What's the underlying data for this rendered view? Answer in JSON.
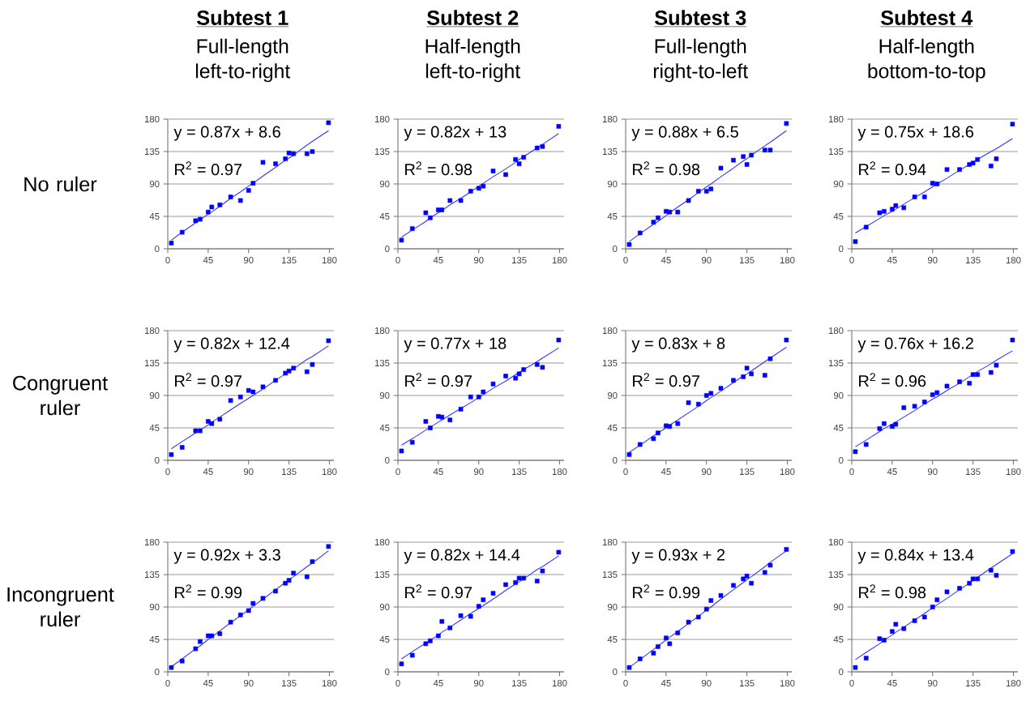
{
  "chart_data": [
    {
      "type": "scatter",
      "title": "Subtest 1",
      "subtitle": "Full-length left-to-right",
      "ylabel": "No ruler",
      "x": [
        4,
        16,
        31,
        36,
        45,
        49,
        58,
        70,
        81,
        90,
        95,
        106,
        120,
        131,
        135,
        140,
        155,
        161,
        179
      ],
      "series": [
        {
          "type": "scatter",
          "color": "#0000ff",
          "values": [
            8,
            23,
            39,
            41,
            51,
            58,
            61,
            72,
            67,
            81,
            91,
            120,
            118,
            125,
            133,
            132,
            132,
            135,
            175
          ]
        },
        {
          "type": "line",
          "marker": "none",
          "color": "#3333ff",
          "values": [
            12,
            23,
            36,
            40,
            48,
            51,
            59,
            70,
            79,
            87,
            91,
            101,
            113,
            123,
            126,
            130,
            144,
            149,
            164
          ]
        }
      ],
      "annotations": [
        "y = 0.87x + 8.6",
        "R$^{2}$ = 0.97"
      ],
      "xlim": [
        0,
        185
      ],
      "ylim": [
        0,
        180
      ],
      "xticks": [
        0,
        45,
        90,
        135,
        180
      ],
      "yticks": [
        0,
        45,
        90,
        135,
        180
      ],
      "grid": "y",
      "marker": "square"
    },
    {
      "type": "scatter",
      "title": "Subtest 2",
      "subtitle": "Half-length left-to-right",
      "x": [
        4,
        16,
        31,
        36,
        45,
        49,
        58,
        70,
        81,
        90,
        95,
        106,
        120,
        131,
        135,
        140,
        155,
        161,
        179
      ],
      "series": [
        {
          "type": "scatter",
          "color": "#0000ff",
          "values": [
            12,
            28,
            50,
            43,
            54,
            54,
            67,
            67,
            80,
            84,
            87,
            108,
            103,
            124,
            118,
            127,
            140,
            142,
            170
          ]
        },
        {
          "type": "line",
          "marker": "none",
          "color": "#3333ff",
          "values": [
            16,
            26,
            38,
            43,
            50,
            53,
            61,
            70,
            79,
            87,
            91,
            100,
            111,
            120,
            124,
            128,
            140,
            145,
            160
          ]
        }
      ],
      "annotations": [
        "y = 0.82x + 13",
        "R$^{2}$ = 0.98"
      ],
      "xlim": [
        0,
        185
      ],
      "ylim": [
        0,
        180
      ],
      "xticks": [
        0,
        45,
        90,
        135,
        180
      ],
      "yticks": [
        0,
        45,
        90,
        135,
        180
      ],
      "grid": "y",
      "marker": "square"
    },
    {
      "type": "scatter",
      "title": "Subtest 3",
      "subtitle": "Full-length right-to-left",
      "x": [
        4,
        16,
        31,
        36,
        45,
        49,
        58,
        70,
        81,
        90,
        95,
        106,
        120,
        131,
        135,
        140,
        155,
        161,
        179
      ],
      "series": [
        {
          "type": "scatter",
          "color": "#0000ff",
          "values": [
            6,
            22,
            37,
            43,
            52,
            51,
            51,
            67,
            80,
            80,
            83,
            112,
            123,
            128,
            117,
            130,
            137,
            137,
            174
          ]
        },
        {
          "type": "line",
          "marker": "none",
          "color": "#3333ff",
          "values": [
            10,
            21,
            34,
            38,
            46,
            50,
            58,
            68,
            78,
            86,
            90,
            100,
            112,
            122,
            125,
            130,
            143,
            148,
            164
          ]
        }
      ],
      "annotations": [
        "y = 0.88x + 6.5",
        "R$^{2}$ = 0.98"
      ],
      "xlim": [
        0,
        185
      ],
      "ylim": [
        0,
        180
      ],
      "xticks": [
        0,
        45,
        90,
        135,
        180
      ],
      "yticks": [
        0,
        45,
        90,
        135,
        180
      ],
      "grid": "y",
      "marker": "square"
    },
    {
      "type": "scatter",
      "title": "Subtest 4",
      "subtitle": "Half-length bottom-to-top",
      "x": [
        4,
        16,
        31,
        36,
        45,
        49,
        58,
        70,
        81,
        90,
        95,
        106,
        120,
        131,
        135,
        140,
        155,
        161,
        179
      ],
      "series": [
        {
          "type": "scatter",
          "color": "#0000ff",
          "values": [
            10,
            30,
            50,
            52,
            55,
            60,
            57,
            72,
            72,
            91,
            90,
            110,
            110,
            117,
            119,
            124,
            115,
            125,
            173
          ]
        },
        {
          "type": "line",
          "marker": "none",
          "color": "#3333ff",
          "values": [
            22,
            31,
            42,
            46,
            52,
            55,
            62,
            71,
            79,
            86,
            90,
            98,
            109,
            117,
            120,
            124,
            135,
            139,
            153
          ]
        }
      ],
      "annotations": [
        "y = 0.75x + 18.6",
        "R$^{2}$ = 0.94"
      ],
      "xlim": [
        0,
        185
      ],
      "ylim": [
        0,
        180
      ],
      "xticks": [
        0,
        45,
        90,
        135,
        180
      ],
      "yticks": [
        0,
        45,
        90,
        135,
        180
      ],
      "grid": "y",
      "marker": "square"
    },
    {
      "type": "scatter",
      "ylabel": "Congruent ruler",
      "x": [
        4,
        16,
        31,
        36,
        45,
        49,
        58,
        70,
        81,
        90,
        95,
        106,
        120,
        131,
        135,
        140,
        155,
        161,
        179
      ],
      "series": [
        {
          "type": "scatter",
          "color": "#0000ff",
          "values": [
            8,
            18,
            41,
            41,
            54,
            51,
            57,
            83,
            88,
            97,
            95,
            102,
            111,
            121,
            124,
            128,
            123,
            133,
            166
          ]
        },
        {
          "type": "line",
          "marker": "none",
          "color": "#3333ff",
          "values": [
            16,
            26,
            38,
            42,
            49,
            53,
            60,
            70,
            79,
            86,
            90,
            99,
            111,
            120,
            123,
            127,
            140,
            144,
            159
          ]
        }
      ],
      "annotations": [
        "y = 0.82x + 12.4",
        "R$^{2}$ = 0.97"
      ],
      "xlim": [
        0,
        185
      ],
      "ylim": [
        0,
        180
      ],
      "xticks": [
        0,
        45,
        90,
        135,
        180
      ],
      "yticks": [
        0,
        45,
        90,
        135,
        180
      ],
      "grid": "y",
      "marker": "square"
    },
    {
      "type": "scatter",
      "x": [
        4,
        16,
        31,
        36,
        45,
        49,
        58,
        70,
        81,
        90,
        95,
        106,
        120,
        131,
        135,
        140,
        155,
        161,
        179
      ],
      "series": [
        {
          "type": "scatter",
          "color": "#0000ff",
          "values": [
            13,
            25,
            54,
            45,
            61,
            60,
            56,
            71,
            88,
            88,
            95,
            106,
            117,
            114,
            120,
            126,
            133,
            129,
            167
          ]
        },
        {
          "type": "line",
          "marker": "none",
          "color": "#3333ff",
          "values": [
            21,
            30,
            42,
            46,
            53,
            56,
            63,
            72,
            80,
            87,
            91,
            100,
            110,
            119,
            122,
            126,
            137,
            142,
            156
          ]
        }
      ],
      "annotations": [
        "y = 0.77x + 18",
        "R$^{2}$ = 0.97"
      ],
      "xlim": [
        0,
        185
      ],
      "ylim": [
        0,
        180
      ],
      "xticks": [
        0,
        45,
        90,
        135,
        180
      ],
      "yticks": [
        0,
        45,
        90,
        135,
        180
      ],
      "grid": "y",
      "marker": "square"
    },
    {
      "type": "scatter",
      "x": [
        4,
        16,
        31,
        36,
        45,
        49,
        58,
        70,
        81,
        90,
        95,
        106,
        120,
        131,
        135,
        140,
        155,
        161,
        179
      ],
      "series": [
        {
          "type": "scatter",
          "color": "#0000ff",
          "values": [
            8,
            22,
            30,
            38,
            48,
            47,
            51,
            80,
            78,
            90,
            93,
            100,
            111,
            116,
            128,
            120,
            118,
            141,
            167
          ]
        },
        {
          "type": "line",
          "marker": "none",
          "color": "#3333ff",
          "values": [
            11,
            21,
            34,
            38,
            45,
            49,
            56,
            66,
            75,
            83,
            87,
            96,
            108,
            117,
            120,
            124,
            137,
            142,
            157
          ]
        }
      ],
      "annotations": [
        "y = 0.83x + 8",
        "R$^{2}$ = 0.97"
      ],
      "xlim": [
        0,
        185
      ],
      "ylim": [
        0,
        180
      ],
      "xticks": [
        0,
        45,
        90,
        135,
        180
      ],
      "yticks": [
        0,
        45,
        90,
        135,
        180
      ],
      "grid": "y",
      "marker": "square"
    },
    {
      "type": "scatter",
      "x": [
        4,
        16,
        31,
        36,
        45,
        49,
        58,
        70,
        81,
        90,
        95,
        106,
        120,
        131,
        135,
        140,
        155,
        161,
        179
      ],
      "series": [
        {
          "type": "scatter",
          "color": "#0000ff",
          "values": [
            12,
            22,
            44,
            51,
            47,
            50,
            73,
            75,
            81,
            91,
            94,
            103,
            109,
            107,
            119,
            119,
            122,
            132,
            167
          ]
        },
        {
          "type": "line",
          "marker": "none",
          "color": "#3333ff",
          "values": [
            19,
            28,
            40,
            44,
            50,
            53,
            60,
            69,
            78,
            85,
            88,
            97,
            107,
            116,
            119,
            123,
            134,
            139,
            152
          ]
        }
      ],
      "annotations": [
        "y = 0.76x + 16.2",
        "R$^{2}$ = 0.96"
      ],
      "xlim": [
        0,
        185
      ],
      "ylim": [
        0,
        180
      ],
      "xticks": [
        0,
        45,
        90,
        135,
        180
      ],
      "yticks": [
        0,
        45,
        90,
        135,
        180
      ],
      "grid": "y",
      "marker": "square"
    },
    {
      "type": "scatter",
      "ylabel": "Incongruent ruler",
      "x": [
        4,
        16,
        31,
        36,
        45,
        49,
        58,
        70,
        81,
        90,
        95,
        106,
        120,
        131,
        135,
        140,
        155,
        161,
        179
      ],
      "series": [
        {
          "type": "scatter",
          "color": "#0000ff",
          "values": [
            6,
            15,
            32,
            42,
            50,
            50,
            53,
            69,
            79,
            85,
            95,
            102,
            112,
            123,
            127,
            137,
            132,
            153,
            174
          ]
        },
        {
          "type": "line",
          "marker": "none",
          "color": "#3333ff",
          "values": [
            7,
            18,
            32,
            36,
            45,
            48,
            57,
            68,
            78,
            86,
            91,
            101,
            114,
            124,
            128,
            132,
            146,
            151,
            168
          ]
        }
      ],
      "annotations": [
        "y = 0.92x + 3.3",
        "R$^{2}$ = 0.99"
      ],
      "xlim": [
        0,
        185
      ],
      "ylim": [
        0,
        180
      ],
      "xticks": [
        0,
        45,
        90,
        135,
        180
      ],
      "yticks": [
        0,
        45,
        90,
        135,
        180
      ],
      "grid": "y",
      "marker": "square"
    },
    {
      "type": "scatter",
      "x": [
        4,
        16,
        31,
        36,
        45,
        49,
        58,
        70,
        81,
        90,
        95,
        106,
        120,
        131,
        135,
        140,
        155,
        161,
        179
      ],
      "series": [
        {
          "type": "scatter",
          "color": "#0000ff",
          "values": [
            11,
            23,
            39,
            43,
            50,
            70,
            61,
            78,
            77,
            91,
            100,
            109,
            121,
            124,
            130,
            130,
            126,
            140,
            166
          ]
        },
        {
          "type": "line",
          "marker": "none",
          "color": "#3333ff",
          "values": [
            18,
            28,
            40,
            44,
            51,
            55,
            62,
            72,
            81,
            88,
            92,
            101,
            113,
            122,
            125,
            129,
            142,
            146,
            161
          ]
        }
      ],
      "annotations": [
        "y = 0.82x + 14.4",
        "R$^{2}$ = 0.97"
      ],
      "xlim": [
        0,
        185
      ],
      "ylim": [
        0,
        180
      ],
      "xticks": [
        0,
        45,
        90,
        135,
        180
      ],
      "yticks": [
        0,
        45,
        90,
        135,
        180
      ],
      "grid": "y",
      "marker": "square"
    },
    {
      "type": "scatter",
      "x": [
        4,
        16,
        31,
        36,
        45,
        49,
        58,
        70,
        81,
        90,
        95,
        106,
        120,
        131,
        135,
        140,
        155,
        161,
        179
      ],
      "series": [
        {
          "type": "scatter",
          "color": "#0000ff",
          "values": [
            6,
            18,
            26,
            35,
            47,
            39,
            54,
            69,
            76,
            87,
            99,
            106,
            120,
            129,
            133,
            123,
            138,
            148,
            170
          ]
        },
        {
          "type": "line",
          "marker": "none",
          "color": "#3333ff",
          "values": [
            6,
            17,
            31,
            36,
            44,
            48,
            56,
            67,
            77,
            86,
            90,
            101,
            114,
            124,
            128,
            132,
            146,
            152,
            168
          ]
        }
      ],
      "annotations": [
        "y = 0.93x + 2",
        "R$^{2}$ = 0.99"
      ],
      "xlim": [
        0,
        185
      ],
      "ylim": [
        0,
        180
      ],
      "xticks": [
        0,
        45,
        90,
        135,
        180
      ],
      "yticks": [
        0,
        45,
        90,
        135,
        180
      ],
      "grid": "y",
      "marker": "square"
    },
    {
      "type": "scatter",
      "x": [
        4,
        16,
        31,
        36,
        45,
        49,
        58,
        70,
        81,
        90,
        95,
        106,
        120,
        131,
        135,
        140,
        155,
        161,
        179
      ],
      "series": [
        {
          "type": "scatter",
          "color": "#0000ff",
          "values": [
            6,
            19,
            46,
            44,
            56,
            66,
            60,
            71,
            76,
            90,
            100,
            111,
            116,
            123,
            129,
            129,
            141,
            134,
            167
          ]
        },
        {
          "type": "line",
          "marker": "none",
          "color": "#3333ff",
          "values": [
            17,
            27,
            39,
            44,
            51,
            55,
            62,
            72,
            81,
            89,
            93,
            102,
            114,
            123,
            127,
            131,
            144,
            149,
            164
          ]
        }
      ],
      "annotations": [
        "y = 0.84x + 13.4",
        "R$^{2}$ = 0.98"
      ],
      "xlim": [
        0,
        185
      ],
      "ylim": [
        0,
        180
      ],
      "xticks": [
        0,
        45,
        90,
        135,
        180
      ],
      "yticks": [
        0,
        45,
        90,
        135,
        180
      ],
      "grid": "y",
      "marker": "square"
    }
  ]
}
